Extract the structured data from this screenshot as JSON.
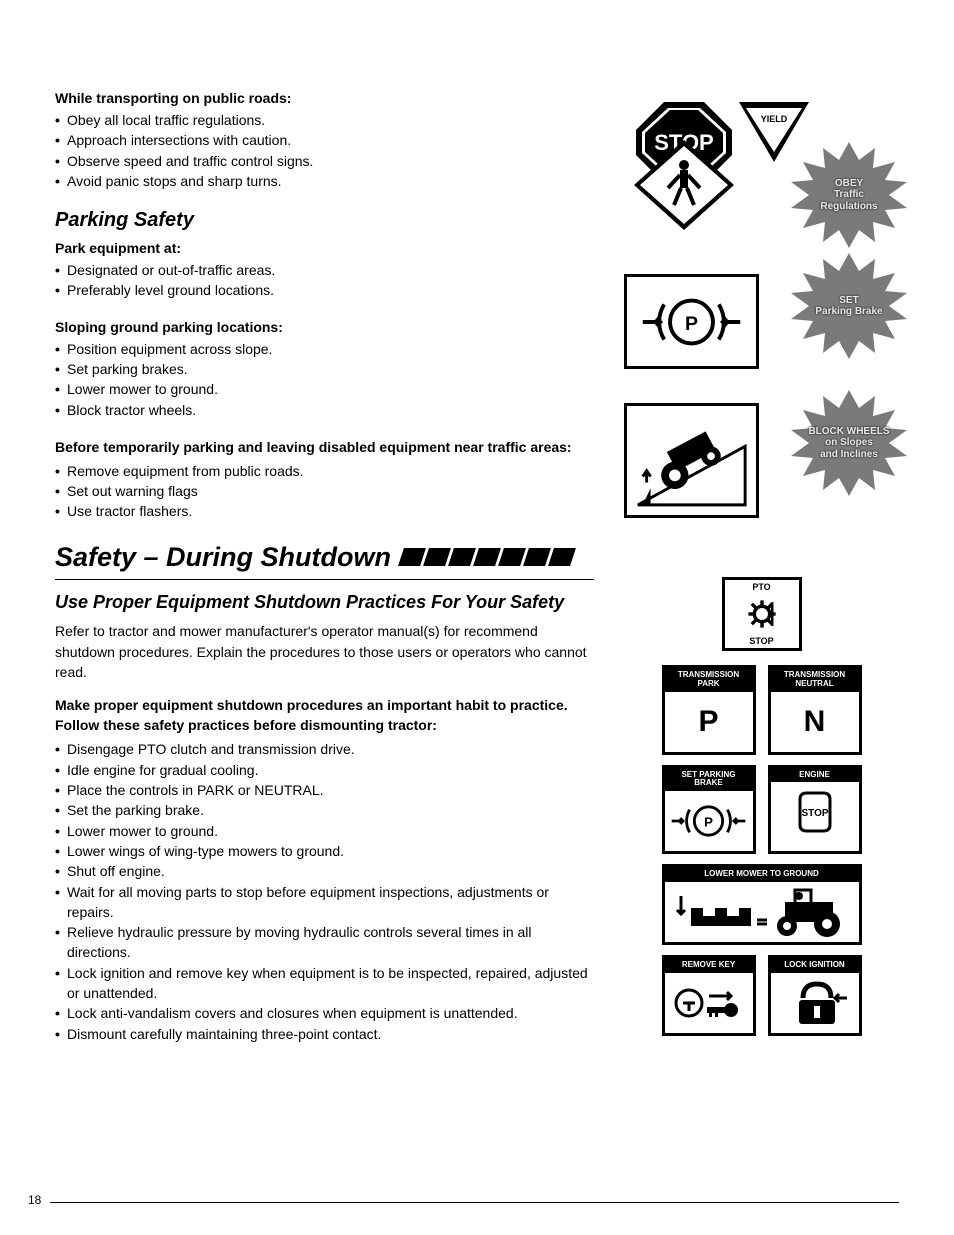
{
  "page_number": "18",
  "colors": {
    "text": "#000000",
    "bg": "#ffffff",
    "starburst_fill": "#7a7a7a",
    "starburst_text": "#e8e8e8",
    "panel_header_bg": "#000000",
    "panel_header_text": "#ffffff"
  },
  "sections": {
    "transporting": {
      "lead": "While transporting on public roads:",
      "items": [
        "Obey all local traffic regulations.",
        "Approach intersections with caution.",
        "Observe speed and traffic control signs.",
        "Avoid panic stops and sharp turns."
      ]
    },
    "parking_safety_title": "Parking Safety",
    "park_at": {
      "lead": "Park equipment at:",
      "items": [
        "Designated or out-of-traffic areas.",
        "Preferably level ground locations."
      ]
    },
    "sloping": {
      "lead": "Sloping ground parking locations:",
      "items": [
        "Position equipment across slope.",
        "Set parking brakes.",
        "Lower mower to ground.",
        "Block tractor wheels."
      ]
    },
    "disabled": {
      "lead": "Before temporarily parking and leaving disabled equipment near traffic areas:",
      "items": [
        "Remove equipment from public roads.",
        "Set out warning flags",
        "Use tractor flashers."
      ]
    },
    "shutdown_title": "Safety – During Shutdown",
    "shutdown_sub": "Use Proper Equipment Shutdown Practices For Your Safety",
    "shutdown_intro": "Refer to tractor and mower manufacturer's operator manual(s) for recommend shutdown procedures. Explain the procedures to those users or operators who cannot read.",
    "shutdown_lead": "Make proper equipment shutdown procedures an important habit to practice. Follow these safety practices before dismounting tractor:",
    "shutdown_items": [
      "Disengage PTO clutch and transmission drive.",
      "Idle engine for gradual cooling.",
      "Place the controls in PARK or NEUTRAL.",
      "Set the parking brake.",
      "Lower mower to ground.",
      "Lower wings of wing-type mowers to ground.",
      "Shut off engine.",
      "Wait for all moving parts to stop before equipment inspections, adjustments or repairs.",
      "Relieve hydraulic pressure by moving hydraulic controls several times in all directions.",
      "Lock ignition and remove key when equipment is to be inspected, repaired, adjusted or unattended.",
      "Lock anti-vandalism covers and closures when equipment is unattended.",
      "Dismount carefully maintaining three-point contact."
    ]
  },
  "right": {
    "starbursts": {
      "obey": "OBEY\nTraffic\nRegulations",
      "set_brake": "SET\nParking Brake",
      "block": "BLOCK WHEELS\non Slopes\nand Inclines"
    },
    "traffic_panel": {
      "stop": "STOP",
      "yield": "YIELD"
    },
    "pto": {
      "top": "PTO",
      "bottom": "STOP"
    },
    "panels": {
      "trans_park": {
        "header": "TRANSMISSION\nPARK",
        "value": "P"
      },
      "trans_neutral": {
        "header": "TRANSMISSION\nNEUTRAL",
        "value": "N"
      },
      "set_parking": {
        "header": "SET PARKING\nBRAKE"
      },
      "engine": {
        "header": "ENGINE",
        "value": "STOP"
      },
      "lower_mower": {
        "header": "LOWER MOWER TO GROUND"
      },
      "remove_key": {
        "header": "REMOVE KEY"
      },
      "lock_ignition": {
        "header": "LOCK IGNITION"
      }
    }
  }
}
